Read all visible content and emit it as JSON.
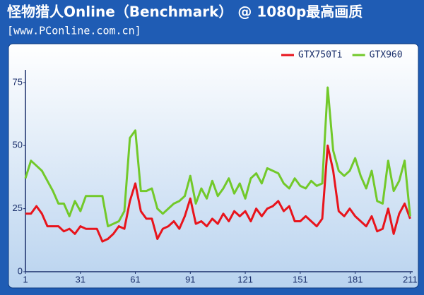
{
  "chart_data": {
    "type": "line",
    "title": "怪物猎人Online（Benchmark） @ 1080p最高画质",
    "subtitle": "[www.PConline.com.cn]",
    "x": [
      1,
      4,
      7,
      10,
      13,
      16,
      19,
      22,
      25,
      28,
      31,
      34,
      37,
      40,
      43,
      46,
      49,
      52,
      55,
      58,
      61,
      64,
      67,
      70,
      73,
      76,
      79,
      82,
      85,
      88,
      91,
      94,
      97,
      100,
      103,
      106,
      109,
      112,
      115,
      118,
      121,
      124,
      127,
      130,
      133,
      136,
      139,
      142,
      145,
      148,
      151,
      154,
      157,
      160,
      163,
      166,
      169,
      172,
      175,
      178,
      181,
      184,
      187,
      190,
      193,
      196,
      199,
      202,
      205,
      208,
      211
    ],
    "series": [
      {
        "name": "GTX750Ti",
        "color": "#e8141c",
        "values": [
          23,
          23,
          26,
          23,
          18,
          18,
          18,
          16,
          17,
          15,
          18,
          17,
          17,
          17,
          12,
          13,
          15,
          18,
          17,
          28,
          35,
          24,
          21,
          21,
          13,
          17,
          18,
          20,
          17,
          22,
          29,
          19,
          20,
          18,
          21,
          19,
          23,
          20,
          24,
          22,
          24,
          20,
          25,
          22,
          25,
          26,
          28,
          24,
          26,
          20,
          20,
          22,
          20,
          18,
          21,
          50,
          40,
          24,
          22,
          25,
          22,
          20,
          18,
          22,
          16,
          17,
          25,
          15,
          23,
          27,
          21
        ]
      },
      {
        "name": "GTX960",
        "color": "#72c92a",
        "values": [
          37,
          44,
          42,
          40,
          36,
          32,
          27,
          27,
          22,
          28,
          24,
          30,
          30,
          30,
          30,
          18,
          19,
          20,
          24,
          53,
          56,
          32,
          32,
          33,
          25,
          23,
          25,
          27,
          28,
          30,
          38,
          27,
          33,
          29,
          36,
          30,
          33,
          37,
          31,
          35,
          29,
          37,
          39,
          35,
          41,
          40,
          39,
          35,
          33,
          37,
          34,
          33,
          36,
          34,
          35,
          73,
          48,
          40,
          38,
          40,
          45,
          38,
          33,
          40,
          28,
          27,
          44,
          32,
          36,
          44,
          22
        ]
      }
    ],
    "xlim": [
      1,
      212
    ],
    "xticks": [
      1,
      31,
      61,
      91,
      121,
      151,
      181,
      211
    ],
    "ylim": [
      0,
      80
    ],
    "yticks": [
      0,
      25,
      50,
      75
    ],
    "grid": false,
    "legend": "top-right"
  }
}
